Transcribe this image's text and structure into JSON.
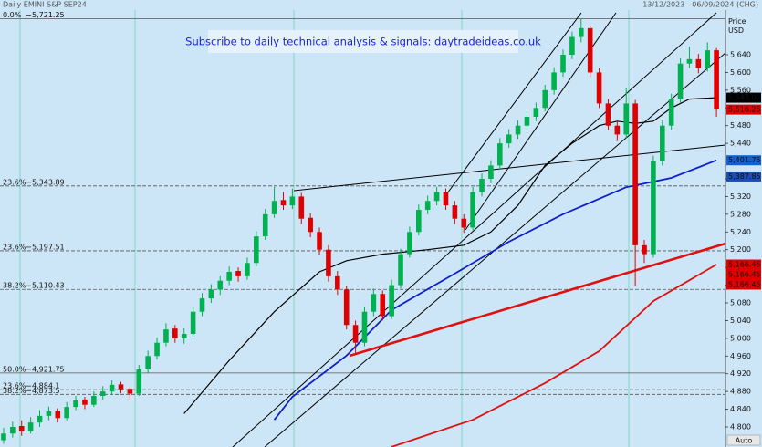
{
  "chart_data": {
    "type": "candlestick",
    "title": "Daily EMINI S&P SEP24",
    "date_range": "13/12/2023 - 06/09/2024 (CHG)",
    "axis_label": "Price USD",
    "button": "Auto",
    "banner": "Subscribe to daily technical analysis & signals: daytradeideas.co.uk",
    "up_color": "#00b14f",
    "down_color": "#e00000",
    "ylim": [
      4754.7,
      5763.5
    ],
    "yticks": [
      {
        "value": 4800,
        "label": "4,800"
      },
      {
        "value": 4840,
        "label": "4,840"
      },
      {
        "value": 4880,
        "label": "4,880"
      },
      {
        "value": 4920,
        "label": "4,920"
      },
      {
        "value": 4960,
        "label": "4,960"
      },
      {
        "value": 5000,
        "label": "5,000"
      },
      {
        "value": 5040,
        "label": "5,040"
      },
      {
        "value": 5080,
        "label": "5,080"
      },
      {
        "value": 5120,
        "label": "5,120"
      },
      {
        "value": 5160,
        "label": "5,160"
      },
      {
        "value": 5200,
        "label": "5,200"
      },
      {
        "value": 5240,
        "label": "5,240"
      },
      {
        "value": 5280,
        "label": "5,280"
      },
      {
        "value": 5320,
        "label": "5,320"
      },
      {
        "value": 5360,
        "label": "5,360"
      },
      {
        "value": 5400,
        "label": "5,400"
      },
      {
        "value": 5440,
        "label": "5,440"
      },
      {
        "value": 5480,
        "label": "5,480"
      },
      {
        "value": 5520,
        "label": "5,520"
      },
      {
        "value": 5560,
        "label": "5,560"
      },
      {
        "value": 5600,
        "label": "5,600"
      },
      {
        "value": 5640,
        "label": "5,640"
      }
    ],
    "candles": [
      [
        4770,
        4798,
        4762,
        4785
      ],
      [
        4785,
        4812,
        4776,
        4800
      ],
      [
        4802,
        4815,
        4780,
        4790
      ],
      [
        4790,
        4822,
        4785,
        4810
      ],
      [
        4810,
        4838,
        4800,
        4825
      ],
      [
        4825,
        4846,
        4815,
        4835
      ],
      [
        4836,
        4842,
        4810,
        4820
      ],
      [
        4820,
        4856,
        4815,
        4845
      ],
      [
        4845,
        4870,
        4838,
        4860
      ],
      [
        4862,
        4868,
        4840,
        4850
      ],
      [
        4850,
        4880,
        4845,
        4870
      ],
      [
        4870,
        4892,
        4862,
        4880
      ],
      [
        4880,
        4905,
        4872,
        4895
      ],
      [
        4896,
        4902,
        4876,
        4885
      ],
      [
        4886,
        4890,
        4862,
        4875
      ],
      [
        4875,
        4940,
        4870,
        4930
      ],
      [
        4930,
        4972,
        4922,
        4960
      ],
      [
        4960,
        5002,
        4952,
        4990
      ],
      [
        4990,
        5034,
        4982,
        5020
      ],
      [
        5022,
        5030,
        4990,
        5000
      ],
      [
        5000,
        5022,
        4988,
        5010
      ],
      [
        5010,
        5070,
        5004,
        5060
      ],
      [
        5060,
        5102,
        5050,
        5090
      ],
      [
        5090,
        5122,
        5080,
        5110
      ],
      [
        5110,
        5140,
        5098,
        5130
      ],
      [
        5130,
        5162,
        5120,
        5150
      ],
      [
        5152,
        5160,
        5128,
        5140
      ],
      [
        5140,
        5182,
        5132,
        5170
      ],
      [
        5170,
        5242,
        5162,
        5230
      ],
      [
        5230,
        5292,
        5222,
        5280
      ],
      [
        5280,
        5342,
        5272,
        5310
      ],
      [
        5312,
        5330,
        5290,
        5300
      ],
      [
        5300,
        5338,
        5292,
        5320
      ],
      [
        5320,
        5328,
        5258,
        5270
      ],
      [
        5272,
        5282,
        5228,
        5240
      ],
      [
        5240,
        5250,
        5188,
        5200
      ],
      [
        5200,
        5210,
        5128,
        5140
      ],
      [
        5140,
        5152,
        5098,
        5110
      ],
      [
        5110,
        5118,
        5020,
        5030
      ],
      [
        5030,
        5040,
        4967,
        4990
      ],
      [
        4990,
        5072,
        4982,
        5060
      ],
      [
        5060,
        5112,
        5050,
        5100
      ],
      [
        5100,
        5108,
        5040,
        5050
      ],
      [
        5050,
        5132,
        5044,
        5120
      ],
      [
        5120,
        5202,
        5112,
        5190
      ],
      [
        5190,
        5252,
        5182,
        5240
      ],
      [
        5240,
        5302,
        5232,
        5290
      ],
      [
        5290,
        5322,
        5280,
        5310
      ],
      [
        5310,
        5342,
        5300,
        5330
      ],
      [
        5330,
        5338,
        5290,
        5300
      ],
      [
        5300,
        5310,
        5258,
        5270
      ],
      [
        5270,
        5280,
        5238,
        5250
      ],
      [
        5250,
        5342,
        5244,
        5330
      ],
      [
        5330,
        5372,
        5320,
        5360
      ],
      [
        5360,
        5402,
        5350,
        5390
      ],
      [
        5390,
        5452,
        5382,
        5440
      ],
      [
        5440,
        5472,
        5430,
        5460
      ],
      [
        5460,
        5492,
        5450,
        5480
      ],
      [
        5480,
        5512,
        5470,
        5500
      ],
      [
        5500,
        5532,
        5490,
        5520
      ],
      [
        5520,
        5572,
        5512,
        5560
      ],
      [
        5560,
        5612,
        5550,
        5600
      ],
      [
        5600,
        5652,
        5590,
        5640
      ],
      [
        5640,
        5692,
        5630,
        5680
      ],
      [
        5680,
        5721.25,
        5668,
        5700
      ],
      [
        5700,
        5706,
        5590,
        5600
      ],
      [
        5600,
        5610,
        5520,
        5530
      ],
      [
        5530,
        5540,
        5470,
        5480
      ],
      [
        5480,
        5490,
        5445,
        5460
      ],
      [
        5460,
        5565,
        5452,
        5530
      ],
      [
        5530,
        5538,
        5118,
        5210
      ],
      [
        5210,
        5222,
        5170,
        5190
      ],
      [
        5190,
        5412,
        5182,
        5400
      ],
      [
        5400,
        5492,
        5390,
        5480
      ],
      [
        5480,
        5552,
        5470,
        5540
      ],
      [
        5540,
        5632,
        5532,
        5620
      ],
      [
        5620,
        5658,
        5610,
        5630
      ],
      [
        5630,
        5642,
        5598,
        5610
      ],
      [
        5610,
        5668,
        5602,
        5650
      ],
      [
        5650,
        5655,
        5500,
        5516.25
      ]
    ],
    "series": [
      {
        "color": "#000000",
        "x": [
          20,
          25,
          30,
          35,
          38,
          42,
          47,
          51,
          54,
          57,
          60,
          63,
          66,
          68,
          70,
          72,
          74,
          76,
          79
        ],
        "values": [
          4830,
          4950,
          5060,
          5150,
          5175,
          5190,
          5200,
          5210,
          5240,
          5300,
          5390,
          5440,
          5480,
          5490,
          5485,
          5490,
          5520,
          5540,
          5543.02
        ]
      },
      {
        "color": "#1020c8",
        "x": [
          30,
          32,
          38,
          43,
          50,
          56,
          62,
          69,
          74,
          79
        ],
        "values": [
          4816,
          4868,
          4961,
          5064,
          5146,
          5218,
          5280,
          5341,
          5362,
          5401.75
        ]
      },
      {
        "color": "#e01010",
        "x": [
          43,
          52,
          60,
          66,
          72,
          79
        ],
        "values": [
          4755,
          4816,
          4899,
          4971,
          5084,
          5166.45
        ]
      }
    ],
    "fib_levels": [
      {
        "label": "0.0%",
        "value": 5721.25,
        "value_label": "5,721.25",
        "style": "solid"
      },
      {
        "label": "23.6%",
        "value": 5343.89,
        "value_label": "5,343.89",
        "style": "dashed"
      },
      {
        "label": "23.6%",
        "value": 5197.51,
        "value_label": "5,197.51",
        "style": "dashed"
      },
      {
        "label": "38.2%",
        "value": 5110.43,
        "value_label": "5,110.43",
        "style": "dashed"
      },
      {
        "label": "50.0%",
        "value": 4921.75,
        "value_label": "4,921.75",
        "style": "solid"
      },
      {
        "label": "23.6%",
        "value": 4884.1,
        "value_label": "4,884.1",
        "style": "dashed"
      },
      {
        "label": "38.2%",
        "value": 4873.5,
        "value_label": "4,873.5",
        "style": "dashed"
      }
    ],
    "last_labels": [
      {
        "value": 5543.02,
        "label": "5,543.02",
        "color": "#000000"
      },
      {
        "value": 5516.25,
        "label": "5,516.25",
        "color": "#e00000"
      },
      {
        "value": 5401.75,
        "label": "5,401.75",
        "color": "#1060d0"
      },
      {
        "value": 5387.85,
        "label": "5,387.85",
        "color": "#1a4fb0"
      },
      {
        "value": 5166.45,
        "label": "5,166.45",
        "color": "#e00000"
      },
      {
        "value": 5166.45,
        "label": "5,166.45",
        "color": "#e00000"
      },
      {
        "value": 5166.45,
        "label": "5,166.45",
        "color": "#e00000"
      }
    ]
  }
}
